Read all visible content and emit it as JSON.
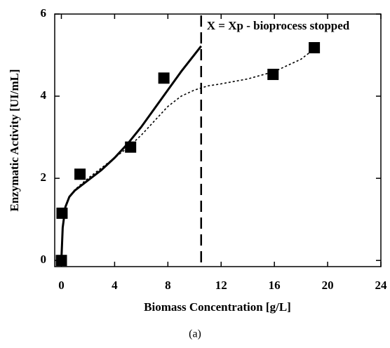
{
  "chart_data": {
    "type": "scatter",
    "xlabel": "Biomass Concentration [g/L]",
    "ylabel": "Enzymatic Activity [UI/mL]",
    "caption": "(a)",
    "annotation": {
      "text": "X = Xp - bioprocess stopped",
      "x": 10.5
    },
    "xlim": [
      -0.5,
      24
    ],
    "ylim": [
      -0.15,
      6
    ],
    "xticks": [
      0,
      4,
      8,
      12,
      16,
      20,
      24
    ],
    "yticks": [
      0,
      2,
      4,
      6
    ],
    "series": [
      {
        "type": "scatter",
        "marker": "square",
        "color": "#000000",
        "x": [
          0,
          0.05,
          1.4,
          5.2,
          7.7,
          15.9,
          19.0
        ],
        "values": [
          0,
          1.15,
          2.1,
          2.76,
          4.44,
          4.53,
          5.18
        ]
      },
      {
        "type": "line",
        "style": "solid",
        "color": "#000000",
        "x": [
          0,
          0.1,
          0.3,
          0.6,
          1,
          2,
          3,
          4,
          5,
          6,
          7,
          8,
          9,
          10.5
        ],
        "values": [
          0,
          0.8,
          1.3,
          1.55,
          1.7,
          1.95,
          2.2,
          2.5,
          2.85,
          3.25,
          3.7,
          4.15,
          4.6,
          5.22
        ]
      },
      {
        "type": "line",
        "style": "dotted",
        "color": "#000000",
        "x": [
          0,
          0.1,
          0.3,
          0.6,
          1,
          2,
          3,
          4,
          5,
          6,
          7,
          8,
          9,
          10,
          11,
          12,
          14,
          16,
          18,
          19
        ],
        "values": [
          0,
          0.8,
          1.3,
          1.55,
          1.72,
          2.0,
          2.25,
          2.5,
          2.75,
          3.05,
          3.4,
          3.75,
          4.0,
          4.15,
          4.25,
          4.3,
          4.42,
          4.6,
          4.9,
          5.15
        ]
      }
    ]
  }
}
